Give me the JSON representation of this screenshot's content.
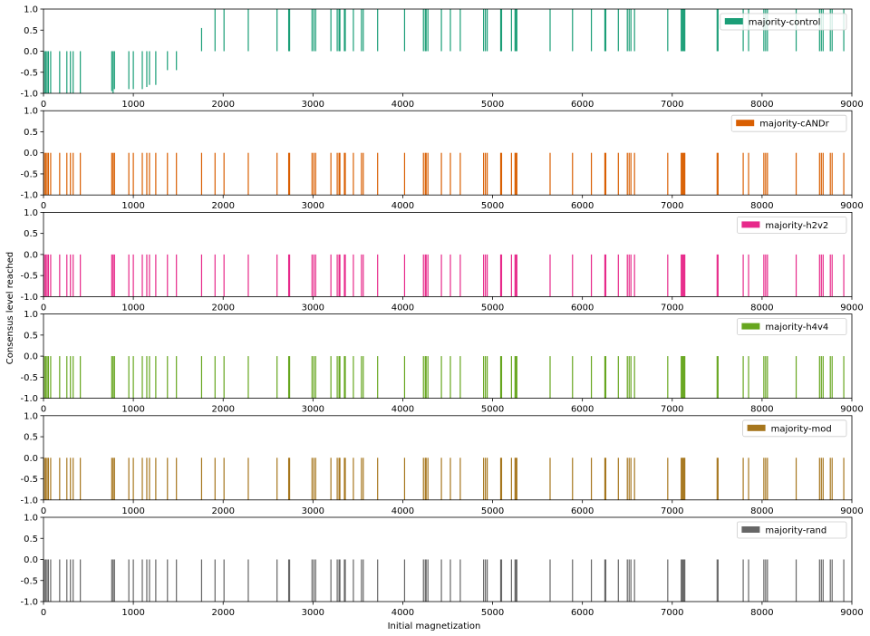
{
  "figure": {
    "ylabel": "Consensus level reached",
    "xlabel": "Initial magnetization"
  },
  "chart_data": [
    {
      "type": "bar",
      "series_name": "majority-control",
      "color": "#1b9e77",
      "xlim": [
        0,
        9000
      ],
      "ylim": [
        -1.0,
        1.0
      ],
      "xticks": [
        "0",
        "1000",
        "2000",
        "3000",
        "4000",
        "5000",
        "6000",
        "7000",
        "8000",
        "9000"
      ],
      "yticks": [
        "-1.0",
        "-0.5",
        "0.0",
        "0.5",
        "1.0"
      ],
      "legend_position": "top-right",
      "bars": [
        {
          "x": 10,
          "y": -1.0
        },
        {
          "x": 25,
          "y": -1.0
        },
        {
          "x": 40,
          "y": -1.0
        },
        {
          "x": 55,
          "y": -1.0
        },
        {
          "x": 80,
          "y": -1.0
        },
        {
          "x": 180,
          "y": -1.0
        },
        {
          "x": 260,
          "y": -1.0
        },
        {
          "x": 300,
          "y": -1.0
        },
        {
          "x": 330,
          "y": -1.0
        },
        {
          "x": 410,
          "y": -1.0
        },
        {
          "x": 760,
          "y": -0.95
        },
        {
          "x": 775,
          "y": -1.0
        },
        {
          "x": 790,
          "y": -0.9
        },
        {
          "x": 950,
          "y": -0.9
        },
        {
          "x": 1000,
          "y": -0.9
        },
        {
          "x": 1100,
          "y": -0.9
        },
        {
          "x": 1150,
          "y": -0.85
        },
        {
          "x": 1180,
          "y": -0.8
        },
        {
          "x": 1250,
          "y": -0.8
        },
        {
          "x": 1380,
          "y": -0.45
        },
        {
          "x": 1480,
          "y": -0.45
        },
        {
          "x": 1760,
          "y": 0.55
        },
        {
          "x": 1910,
          "y": 1.0
        },
        {
          "x": 2010,
          "y": 1.0
        },
        {
          "x": 2280,
          "y": 1.0
        },
        {
          "x": 2600,
          "y": 1.0
        },
        {
          "x": 2730,
          "y": 1.0
        },
        {
          "x": 2740,
          "y": 1.0
        },
        {
          "x": 2990,
          "y": 1.0
        },
        {
          "x": 3010,
          "y": 1.0
        },
        {
          "x": 3030,
          "y": 1.0
        },
        {
          "x": 3200,
          "y": 1.0
        },
        {
          "x": 3270,
          "y": 1.0
        },
        {
          "x": 3290,
          "y": 1.0
        },
        {
          "x": 3300,
          "y": 1.0
        },
        {
          "x": 3350,
          "y": 1.0
        },
        {
          "x": 3360,
          "y": 1.0
        },
        {
          "x": 3450,
          "y": 1.0
        },
        {
          "x": 3540,
          "y": 1.0
        },
        {
          "x": 3560,
          "y": 1.0
        },
        {
          "x": 3720,
          "y": 1.0
        },
        {
          "x": 4020,
          "y": 1.0
        },
        {
          "x": 4230,
          "y": 1.0
        },
        {
          "x": 4250,
          "y": 1.0
        },
        {
          "x": 4260,
          "y": 1.0
        },
        {
          "x": 4280,
          "y": 1.0
        },
        {
          "x": 4430,
          "y": 1.0
        },
        {
          "x": 4530,
          "y": 1.0
        },
        {
          "x": 4640,
          "y": 1.0
        },
        {
          "x": 4900,
          "y": 1.0
        },
        {
          "x": 4920,
          "y": 1.0
        },
        {
          "x": 4940,
          "y": 1.0
        },
        {
          "x": 5090,
          "y": 1.0
        },
        {
          "x": 5100,
          "y": 1.0
        },
        {
          "x": 5210,
          "y": 1.0
        },
        {
          "x": 5250,
          "y": 1.0
        },
        {
          "x": 5260,
          "y": 1.0
        },
        {
          "x": 5270,
          "y": 1.0
        },
        {
          "x": 5640,
          "y": 1.0
        },
        {
          "x": 5890,
          "y": 1.0
        },
        {
          "x": 6100,
          "y": 1.0
        },
        {
          "x": 6250,
          "y": 1.0
        },
        {
          "x": 6260,
          "y": 1.0
        },
        {
          "x": 6400,
          "y": 1.0
        },
        {
          "x": 6500,
          "y": 1.0
        },
        {
          "x": 6520,
          "y": 1.0
        },
        {
          "x": 6540,
          "y": 1.0
        },
        {
          "x": 6580,
          "y": 1.0
        },
        {
          "x": 6950,
          "y": 1.0
        },
        {
          "x": 7100,
          "y": 1.0
        },
        {
          "x": 7110,
          "y": 1.0
        },
        {
          "x": 7120,
          "y": 1.0
        },
        {
          "x": 7130,
          "y": 1.0
        },
        {
          "x": 7140,
          "y": 1.0
        },
        {
          "x": 7500,
          "y": 1.0
        },
        {
          "x": 7510,
          "y": 1.0
        },
        {
          "x": 7790,
          "y": 1.0
        },
        {
          "x": 7850,
          "y": 1.0
        },
        {
          "x": 8020,
          "y": 1.0
        },
        {
          "x": 8040,
          "y": 1.0
        },
        {
          "x": 8060,
          "y": 1.0
        },
        {
          "x": 8380,
          "y": 1.0
        },
        {
          "x": 8640,
          "y": 1.0
        },
        {
          "x": 8660,
          "y": 1.0
        },
        {
          "x": 8680,
          "y": 1.0
        },
        {
          "x": 8760,
          "y": 1.0
        },
        {
          "x": 8780,
          "y": 1.0
        },
        {
          "x": 8910,
          "y": 1.0
        }
      ]
    },
    {
      "type": "bar",
      "series_name": "majority-cANDr",
      "color": "#d95f02",
      "xlim": [
        0,
        9000
      ],
      "ylim": [
        -1.0,
        1.0
      ],
      "xticks": [
        "0",
        "1000",
        "2000",
        "3000",
        "4000",
        "5000",
        "6000",
        "7000",
        "8000",
        "9000"
      ],
      "yticks": [
        "-1.0",
        "-0.5",
        "0.0",
        "0.5",
        "1.0"
      ],
      "legend_position": "top-right",
      "bars": "same_positions_as_first",
      "y_all": -1.0
    },
    {
      "type": "bar",
      "series_name": "majority-h2v2",
      "color": "#e7298a",
      "xlim": [
        0,
        9000
      ],
      "ylim": [
        -1.0,
        1.0
      ],
      "xticks": [
        "0",
        "1000",
        "2000",
        "3000",
        "4000",
        "5000",
        "6000",
        "7000",
        "8000",
        "9000"
      ],
      "yticks": [
        "-1.0",
        "-0.5",
        "0.0",
        "0.5",
        "1.0"
      ],
      "legend_position": "top-right",
      "bars": "same_positions_as_first",
      "y_all": -1.0
    },
    {
      "type": "bar",
      "series_name": "majority-h4v4",
      "color": "#66a61e",
      "xlim": [
        0,
        9000
      ],
      "ylim": [
        -1.0,
        1.0
      ],
      "xticks": [
        "0",
        "1000",
        "2000",
        "3000",
        "4000",
        "5000",
        "6000",
        "7000",
        "8000",
        "9000"
      ],
      "yticks": [
        "-1.0",
        "-0.5",
        "0.0",
        "0.5",
        "1.0"
      ],
      "legend_position": "top-right",
      "bars": "same_positions_as_first",
      "y_all": -1.0
    },
    {
      "type": "bar",
      "series_name": "majority-mod",
      "color": "#a6761d",
      "xlim": [
        0,
        9000
      ],
      "ylim": [
        -1.0,
        1.0
      ],
      "xticks": [
        "0",
        "1000",
        "2000",
        "3000",
        "4000",
        "5000",
        "6000",
        "7000",
        "8000",
        "9000"
      ],
      "yticks": [
        "-1.0",
        "-0.5",
        "0.0",
        "0.5",
        "1.0"
      ],
      "legend_position": "top-right",
      "bars": "same_positions_as_first",
      "y_all": -1.0
    },
    {
      "type": "bar",
      "series_name": "majority-rand",
      "color": "#666666",
      "xlim": [
        0,
        9000
      ],
      "ylim": [
        -1.0,
        1.0
      ],
      "xticks": [
        "0",
        "1000",
        "2000",
        "3000",
        "4000",
        "5000",
        "6000",
        "7000",
        "8000",
        "9000"
      ],
      "yticks": [
        "-1.0",
        "-0.5",
        "0.0",
        "0.5",
        "1.0"
      ],
      "legend_position": "top-right",
      "bars": "same_positions_as_first",
      "y_all": -1.0
    }
  ]
}
